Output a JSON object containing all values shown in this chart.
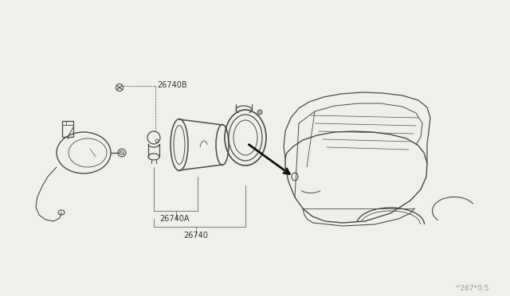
{
  "bg_color": "#f0f0eb",
  "line_color": "#4a4a4a",
  "text_color": "#333333",
  "watermark": "^267*0:5",
  "lw_main": 1.0,
  "lw_thin": 0.6
}
